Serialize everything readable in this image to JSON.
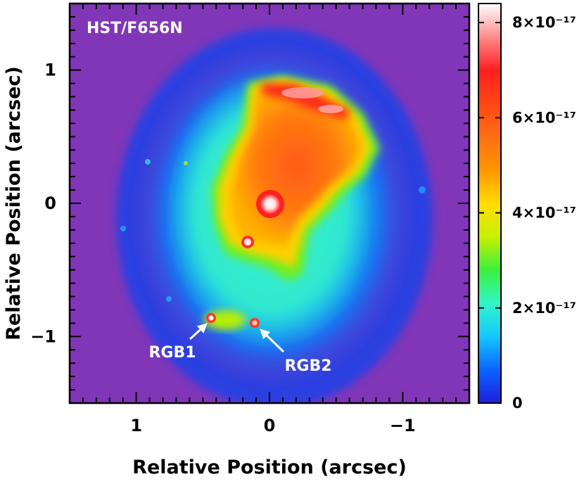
{
  "chart_data": {
    "type": "heatmap",
    "title": "HST/F656N",
    "xlabel": "Relative Position (arcsec)",
    "ylabel": "Relative Position (arcsec)",
    "xlim": [
      1.5,
      -1.5
    ],
    "ylim": [
      -1.5,
      1.5
    ],
    "x_ticks": [
      {
        "value": 1,
        "label": "1"
      },
      {
        "value": 0,
        "label": "0"
      },
      {
        "value": -1,
        "label": "−1"
      }
    ],
    "y_ticks": [
      {
        "value": 1,
        "label": "1"
      },
      {
        "value": 0,
        "label": "0"
      },
      {
        "value": -1,
        "label": "−1"
      }
    ],
    "colorbar": {
      "range": [
        0,
        8.4e-17
      ],
      "ticks": [
        {
          "value": 0,
          "label": "0"
        },
        {
          "value": 2e-17,
          "label": "2×10⁻¹⁷"
        },
        {
          "value": 4e-17,
          "label": "4×10⁻¹⁷"
        },
        {
          "value": 6e-17,
          "label": "6×10⁻¹⁷"
        },
        {
          "value": 8e-17,
          "label": "8×10⁻¹⁷"
        }
      ],
      "colors": [
        "#1e1edc",
        "#0a64ff",
        "#14c8ff",
        "#32f5c8",
        "#3cf03c",
        "#c8f000",
        "#ffdc00",
        "#ff9600",
        "#ff6e14",
        "#ff4614",
        "#ff1e1e",
        "#ff8c8c",
        "#ffffff"
      ]
    },
    "annotations": [
      {
        "label": "RGB1",
        "x": 0.45,
        "y": -0.85
      },
      {
        "label": "RGB2",
        "x": 0.1,
        "y": -0.88
      }
    ],
    "features": [
      {
        "name": "central-star",
        "x": 0.0,
        "y": 0.0,
        "value": 8.4e-17
      },
      {
        "name": "southern-knot",
        "x": 0.15,
        "y": -0.28,
        "value": 8e-17
      },
      {
        "name": "northern-rim",
        "x": -0.3,
        "y": 0.85,
        "value": 7.5e-17
      }
    ]
  }
}
